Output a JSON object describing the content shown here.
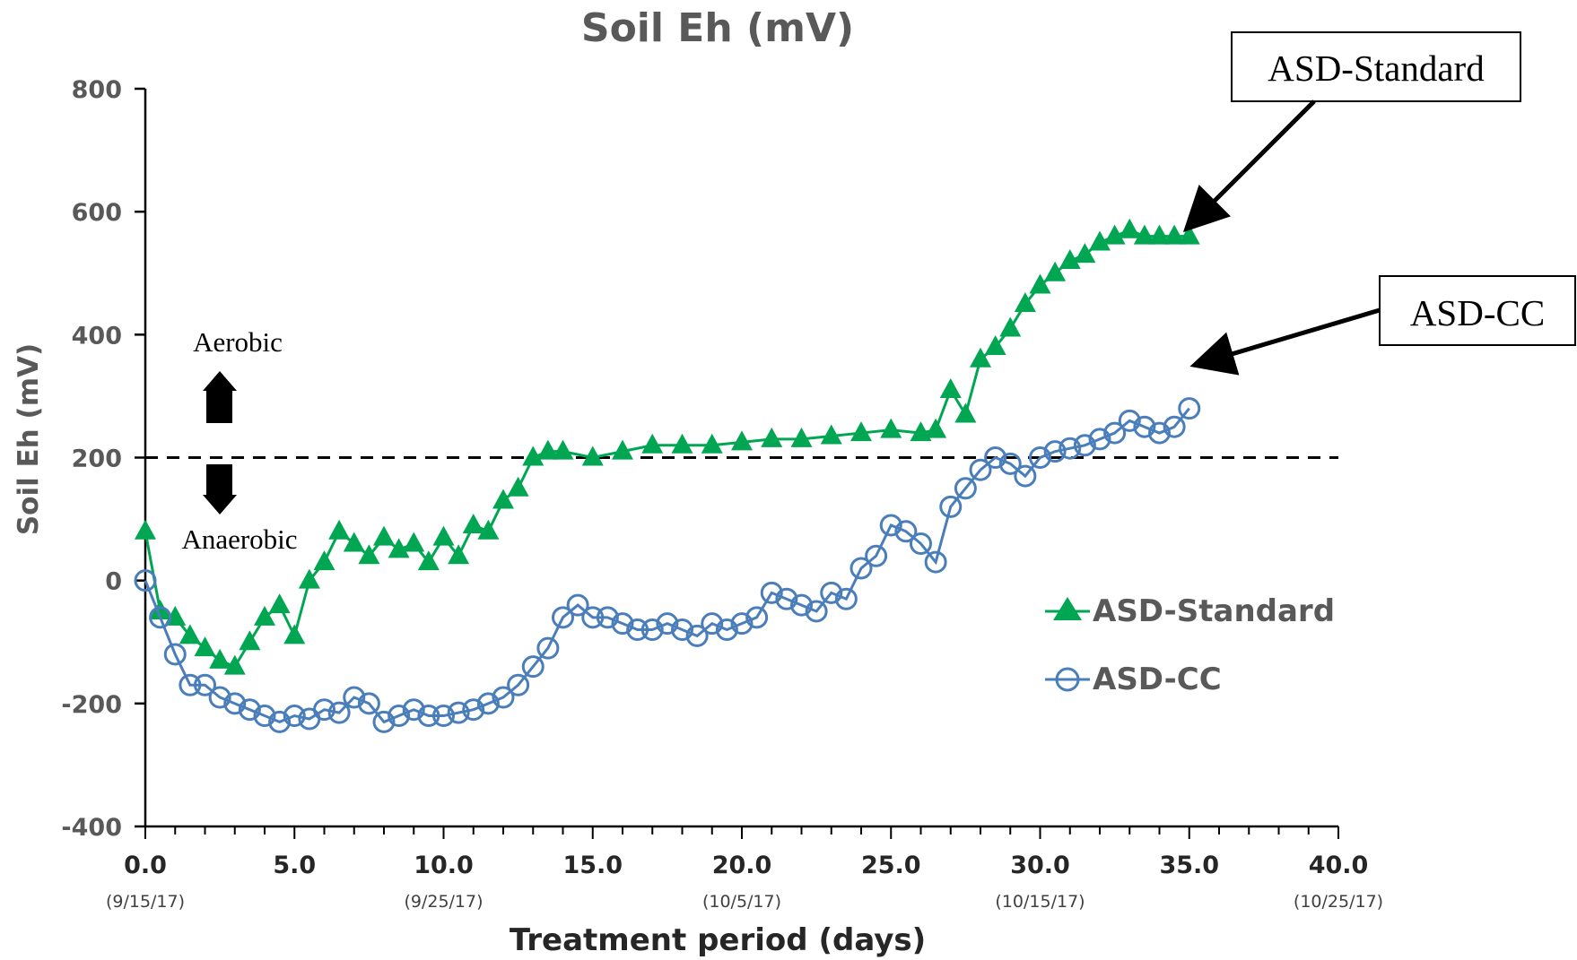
{
  "chart_data": {
    "type": "scatter",
    "title": "Soil Eh (mV)",
    "xlabel": "Treatment period (days)",
    "ylabel": "Soil Eh (mV)",
    "xlim": [
      0,
      40
    ],
    "ylim": [
      -400,
      800
    ],
    "x_ticks": [
      "0.0",
      "5.0",
      "10.0",
      "15.0",
      "20.0",
      "25.0",
      "30.0",
      "35.0",
      "40.0"
    ],
    "x_tick_values": [
      0,
      5,
      10,
      15,
      20,
      25,
      30,
      35,
      40
    ],
    "x_dates": [
      {
        "x": 0,
        "label": "(9/15/17)"
      },
      {
        "x": 10,
        "label": "(9/25/17)"
      },
      {
        "x": 20,
        "label": "(10/5/17)"
      },
      {
        "x": 30,
        "label": "(10/15/17)"
      },
      {
        "x": 40,
        "label": "(10/25/17)"
      }
    ],
    "y_ticks": [
      "800",
      "600",
      "400",
      "200",
      "0",
      "-200",
      "-400"
    ],
    "y_tick_values": [
      800,
      600,
      400,
      200,
      0,
      -200,
      -400
    ],
    "threshold": {
      "y": 200,
      "above_label": "Aerobic",
      "below_label": "Anaerobic"
    },
    "legend_position": "right",
    "series": [
      {
        "name": "ASD-Standard",
        "color": "#00a651",
        "marker": "triangle",
        "x": [
          0,
          0.5,
          1,
          1.5,
          2,
          2.5,
          3,
          3.5,
          4,
          4.5,
          5,
          5.5,
          6,
          6.5,
          7,
          7.5,
          8,
          8.5,
          9,
          9.5,
          10,
          10.5,
          11,
          11.5,
          12,
          12.5,
          13,
          13.5,
          14,
          15,
          16,
          17,
          18,
          19,
          20,
          21,
          22,
          23,
          24,
          25,
          26,
          26.5,
          27,
          27.5,
          28,
          28.5,
          29,
          29.5,
          30,
          30.5,
          31,
          31.5,
          32,
          32.5,
          33,
          33.5,
          34,
          34.5,
          35
        ],
        "y": [
          80,
          -50,
          -60,
          -90,
          -110,
          -130,
          -140,
          -100,
          -60,
          -40,
          -90,
          0,
          30,
          80,
          60,
          40,
          70,
          50,
          60,
          30,
          70,
          40,
          90,
          80,
          130,
          150,
          200,
          210,
          210,
          200,
          210,
          220,
          220,
          220,
          225,
          230,
          230,
          235,
          240,
          245,
          240,
          245,
          310,
          270,
          360,
          380,
          410,
          450,
          480,
          500,
          520,
          530,
          550,
          560,
          570,
          560,
          560,
          560,
          560
        ]
      },
      {
        "name": "ASD-CC",
        "color": "#4a7ebb",
        "marker": "open-circle",
        "x": [
          0,
          0.5,
          1,
          1.5,
          2,
          2.5,
          3,
          3.5,
          4,
          4.5,
          5,
          5.5,
          6,
          6.5,
          7,
          7.5,
          8,
          8.5,
          9,
          9.5,
          10,
          10.5,
          11,
          11.5,
          12,
          12.5,
          13,
          13.5,
          14,
          14.5,
          15,
          15.5,
          16,
          16.5,
          17,
          17.5,
          18,
          18.5,
          19,
          19.5,
          20,
          20.5,
          21,
          21.5,
          22,
          22.5,
          23,
          23.5,
          24,
          24.5,
          25,
          25.5,
          26,
          26.5,
          27,
          27.5,
          28,
          28.5,
          29,
          29.5,
          30,
          30.5,
          31,
          31.5,
          32,
          32.5,
          33,
          33.5,
          34,
          34.5,
          35
        ],
        "y": [
          0,
          -60,
          -120,
          -170,
          -170,
          -190,
          -200,
          -210,
          -220,
          -230,
          -220,
          -225,
          -210,
          -215,
          -190,
          -200,
          -230,
          -220,
          -210,
          -220,
          -220,
          -215,
          -210,
          -200,
          -190,
          -170,
          -140,
          -110,
          -60,
          -40,
          -60,
          -60,
          -70,
          -80,
          -80,
          -70,
          -80,
          -90,
          -70,
          -80,
          -70,
          -60,
          -20,
          -30,
          -40,
          -50,
          -20,
          -30,
          20,
          40,
          90,
          80,
          60,
          30,
          120,
          150,
          180,
          200,
          190,
          170,
          200,
          210,
          215,
          220,
          230,
          240,
          260,
          250,
          240,
          250,
          280
        ]
      }
    ]
  },
  "callouts": [
    {
      "label": "ASD-Standard",
      "series": 0
    },
    {
      "label": "ASD-CC",
      "series": 1
    }
  ]
}
